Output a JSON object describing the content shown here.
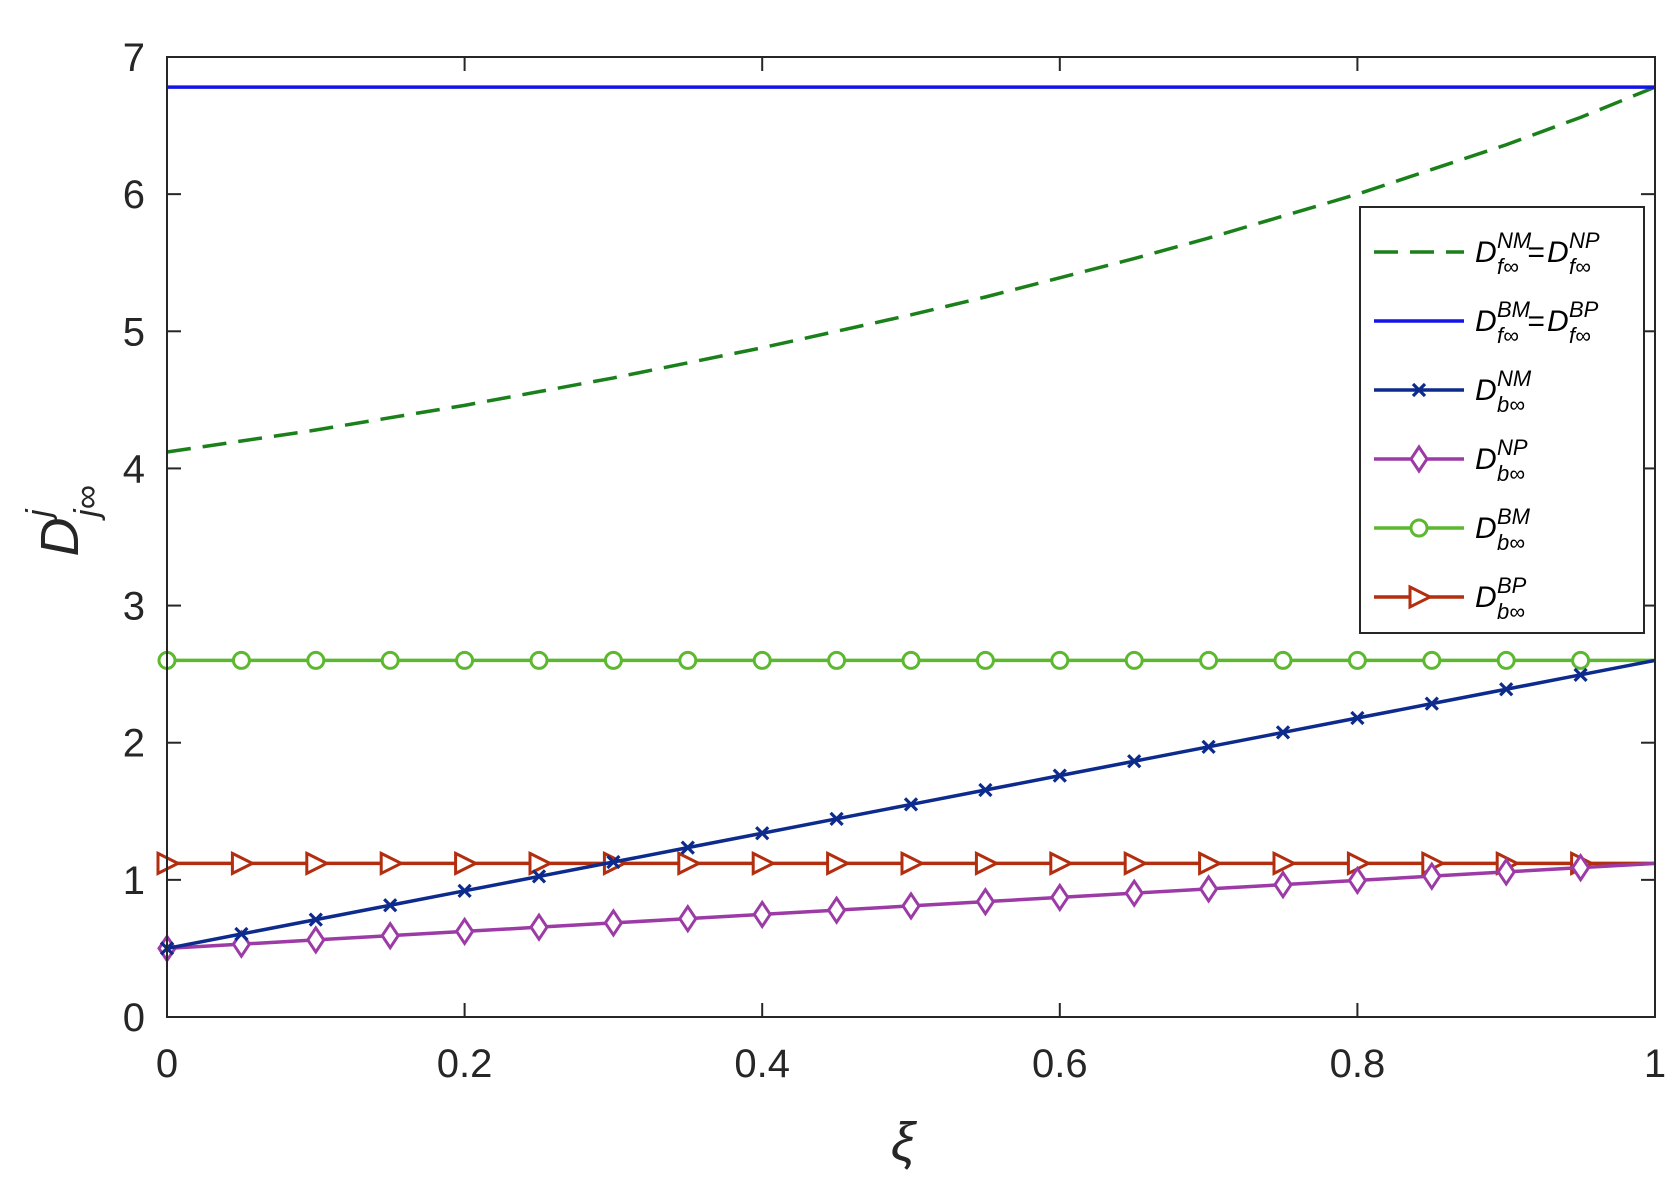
{
  "chart_data": {
    "type": "line",
    "xlabel": "ξ",
    "ylabel": {
      "base": "D",
      "sup": "j",
      "sub": "j∞"
    },
    "xlim": [
      0,
      1
    ],
    "ylim": [
      0,
      7
    ],
    "xticks": [
      "0",
      "0.2",
      "0.4",
      "0.6",
      "0.8",
      "1"
    ],
    "xtick_values": [
      0,
      0.2,
      0.4,
      0.6,
      0.8,
      1
    ],
    "yticks": [
      "0",
      "1",
      "2",
      "3",
      "4",
      "5",
      "6",
      "7"
    ],
    "ytick_values": [
      0,
      1,
      2,
      3,
      4,
      5,
      6,
      7
    ],
    "grid": false,
    "legend_position": "top-right",
    "series": [
      {
        "id": "nm-np-f",
        "legend": {
          "a": "D",
          "a_sup": "NM",
          "a_sub": "f∞",
          "eq": "=",
          "b": "D",
          "b_sup": "NP",
          "b_sub": "f∞"
        },
        "color": "#1a801a",
        "style": "dashed",
        "marker": "none",
        "x": [
          0,
          0.05,
          0.1,
          0.15,
          0.2,
          0.25,
          0.3,
          0.35,
          0.4,
          0.45,
          0.5,
          0.55,
          0.6,
          0.65,
          0.7,
          0.75,
          0.8,
          0.85,
          0.9,
          0.95,
          1
        ],
        "values": [
          4.12,
          4.2,
          4.28,
          4.37,
          4.46,
          4.56,
          4.66,
          4.77,
          4.88,
          5.0,
          5.12,
          5.25,
          5.39,
          5.53,
          5.68,
          5.84,
          6.0,
          6.18,
          6.36,
          6.56,
          6.78
        ]
      },
      {
        "id": "bm-bp-f",
        "legend": {
          "a": "D",
          "a_sup": "BM",
          "a_sub": "f∞",
          "eq": "=",
          "b": "D",
          "b_sup": "BP",
          "b_sub": "f∞"
        },
        "color": "#1414e6",
        "style": "solid",
        "marker": "none",
        "x": [
          0,
          1
        ],
        "values": [
          6.78,
          6.78
        ]
      },
      {
        "id": "nm-b",
        "legend": {
          "a": "D",
          "a_sup": "NM",
          "a_sub": "b∞"
        },
        "color": "#0d2b8c",
        "style": "solid",
        "marker": "x",
        "x": [
          0,
          0.05,
          0.1,
          0.15,
          0.2,
          0.25,
          0.3,
          0.35,
          0.4,
          0.45,
          0.5,
          0.55,
          0.6,
          0.65,
          0.7,
          0.75,
          0.8,
          0.85,
          0.9,
          0.95,
          1
        ],
        "values": [
          0.5,
          0.605,
          0.71,
          0.815,
          0.92,
          1.025,
          1.13,
          1.235,
          1.34,
          1.445,
          1.55,
          1.655,
          1.76,
          1.865,
          1.97,
          2.075,
          2.18,
          2.285,
          2.39,
          2.495,
          2.6
        ]
      },
      {
        "id": "np-b",
        "legend": {
          "a": "D",
          "a_sup": "NP",
          "a_sub": "b∞"
        },
        "color": "#9c3aa6",
        "style": "solid",
        "marker": "diamond",
        "x": [
          0,
          0.05,
          0.1,
          0.15,
          0.2,
          0.25,
          0.3,
          0.35,
          0.4,
          0.45,
          0.5,
          0.55,
          0.6,
          0.65,
          0.7,
          0.75,
          0.8,
          0.85,
          0.9,
          0.95,
          1
        ],
        "values": [
          0.5,
          0.531,
          0.562,
          0.593,
          0.624,
          0.655,
          0.686,
          0.717,
          0.748,
          0.779,
          0.81,
          0.841,
          0.872,
          0.903,
          0.934,
          0.965,
          0.996,
          1.027,
          1.058,
          1.089,
          1.12
        ]
      },
      {
        "id": "bm-b",
        "legend": {
          "a": "D",
          "a_sup": "BM",
          "a_sub": "b∞"
        },
        "color": "#5cb82e",
        "style": "solid",
        "marker": "circle",
        "x": [
          0,
          0.05,
          0.1,
          0.15,
          0.2,
          0.25,
          0.3,
          0.35,
          0.4,
          0.45,
          0.5,
          0.55,
          0.6,
          0.65,
          0.7,
          0.75,
          0.8,
          0.85,
          0.9,
          0.95,
          1
        ],
        "values": [
          2.6,
          2.6,
          2.6,
          2.6,
          2.6,
          2.6,
          2.6,
          2.6,
          2.6,
          2.6,
          2.6,
          2.6,
          2.6,
          2.6,
          2.6,
          2.6,
          2.6,
          2.6,
          2.6,
          2.6,
          2.6
        ]
      },
      {
        "id": "bp-b",
        "legend": {
          "a": "D",
          "a_sup": "BP",
          "a_sub": "b∞"
        },
        "color": "#b32e0f",
        "style": "solid",
        "marker": "triangle-right",
        "x": [
          0,
          0.05,
          0.1,
          0.15,
          0.2,
          0.25,
          0.3,
          0.35,
          0.4,
          0.45,
          0.5,
          0.55,
          0.6,
          0.65,
          0.7,
          0.75,
          0.8,
          0.85,
          0.9,
          0.95,
          1
        ],
        "values": [
          1.12,
          1.12,
          1.12,
          1.12,
          1.12,
          1.12,
          1.12,
          1.12,
          1.12,
          1.12,
          1.12,
          1.12,
          1.12,
          1.12,
          1.12,
          1.12,
          1.12,
          1.12,
          1.12,
          1.12,
          1.12
        ]
      }
    ]
  }
}
